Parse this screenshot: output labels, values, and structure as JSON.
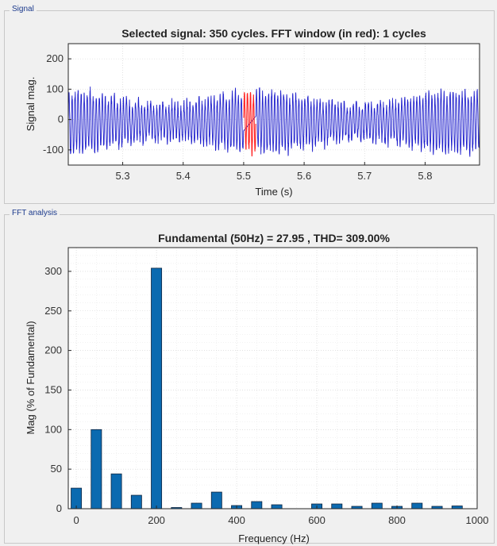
{
  "panels": {
    "signal_label": "Signal",
    "fft_label": "FFT analysis"
  },
  "colors": {
    "signal": "#1f1fcc",
    "window": "#ff2020",
    "bar": "#0b6ab0"
  },
  "chart_data": [
    {
      "type": "line",
      "title": "Selected signal: 350 cycles. FFT window (in red): 1 cycles",
      "xlabel": "Time (s)",
      "ylabel": "Signal mag.",
      "xlim": [
        5.21,
        5.89
      ],
      "ylim": [
        -150,
        250
      ],
      "xticks": [
        5.3,
        5.4,
        5.5,
        5.6,
        5.7,
        5.8
      ],
      "xtick_labels": [
        "5.3",
        "5.4",
        "5.5",
        "5.6",
        "5.7",
        "5.8"
      ],
      "yticks": [
        -100,
        0,
        100,
        200
      ],
      "ytick_labels": [
        "-100",
        "0",
        "100",
        "200"
      ],
      "grid": true,
      "series": [
        {
          "role": "signal",
          "approx_amplitude": 95,
          "approx_offset": -8,
          "approx_frequency_hz": 200
        },
        {
          "role": "fft_window",
          "x_range": [
            5.5,
            5.52
          ]
        }
      ]
    },
    {
      "type": "bar",
      "title": "Fundamental (50Hz) = 27.95 , THD= 309.00%",
      "xlabel": "Frequency (Hz)",
      "ylabel": "Mag (% of Fundamental)",
      "xlim": [
        -20,
        1000
      ],
      "ylim": [
        0,
        330
      ],
      "xticks": [
        0,
        200,
        400,
        600,
        800,
        1000
      ],
      "xtick_labels": [
        "0",
        "200",
        "400",
        "600",
        "800",
        "1000"
      ],
      "yticks": [
        0,
        50,
        100,
        150,
        200,
        250,
        300
      ],
      "ytick_labels": [
        "0",
        "50",
        "100",
        "150",
        "200",
        "250",
        "300"
      ],
      "grid": true,
      "x": [
        0,
        50,
        100,
        150,
        200,
        250,
        300,
        350,
        400,
        450,
        500,
        550,
        600,
        650,
        700,
        750,
        800,
        850,
        900,
        950
      ],
      "values": [
        26,
        100,
        44,
        17,
        304,
        1.5,
        7,
        21,
        4,
        9,
        5,
        0,
        6,
        6,
        3,
        7,
        3,
        7,
        3,
        3.5
      ]
    }
  ]
}
